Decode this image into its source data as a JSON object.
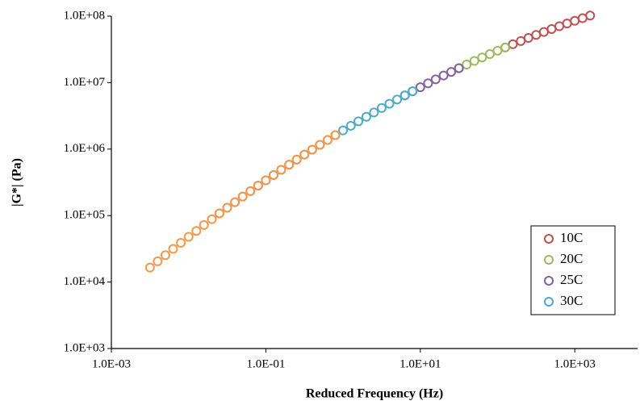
{
  "chart_data": {
    "type": "scatter",
    "xlabel": "Reduced Frequency (Hz)",
    "ylabel": "|G*| (Pa)",
    "xscale": "log",
    "yscale": "log",
    "xlim": [
      0.001,
      6500
    ],
    "ylim": [
      1000,
      100000000
    ],
    "xticks": [
      {
        "value": 0.001,
        "label": "1.0E-03"
      },
      {
        "value": 0.1,
        "label": "1.0E-01"
      },
      {
        "value": 10,
        "label": "1.0E+01"
      },
      {
        "value": 1000,
        "label": "1.0E+03"
      }
    ],
    "yticks": [
      {
        "value": 1000,
        "label": "1.0E+03"
      },
      {
        "value": 10000,
        "label": "1.0E+04"
      },
      {
        "value": 100000,
        "label": "1.0E+05"
      },
      {
        "value": 1000000,
        "label": "1.0E+06"
      },
      {
        "value": 10000000,
        "label": "1.0E+07"
      },
      {
        "value": 100000000,
        "label": "1.0E+08"
      }
    ],
    "legend": "lower right",
    "series": [
      {
        "name": "10C",
        "color": "#c0504d",
        "x": [
          126,
          158,
          200,
          251,
          316,
          398,
          501,
          631,
          794,
          1000,
          1260,
          1580
        ],
        "values": [
          33800000,
          37800000,
          42200000,
          47000000,
          52200000,
          57800000,
          63900000,
          70500000,
          77500000,
          85100000,
          93200000,
          102000000
        ]
      },
      {
        "name": "20C",
        "color": "#9bbb59",
        "x": [
          31.6,
          39.8,
          50.1,
          63.1,
          79.4,
          100,
          126
        ],
        "values": [
          16500000,
          18700000,
          21200000,
          23900000,
          26900000,
          30200000,
          33800000
        ]
      },
      {
        "name": "25C",
        "color": "#8064a2",
        "x": [
          6.31,
          7.94,
          10,
          12.6,
          15.8,
          20,
          25.1,
          31.6
        ],
        "values": [
          6430000,
          7410000,
          8510000,
          9760000,
          11200000,
          12800000,
          14500000,
          16500000
        ]
      },
      {
        "name": "30C",
        "color": "#4bacc6",
        "x": [
          0.0251,
          0.0316,
          0.0398,
          0.0501,
          0.0631,
          0.0794,
          0.1,
          0.126,
          0.158,
          0.2,
          0.251,
          0.316,
          0.398,
          0.501,
          0.631,
          0.794,
          1,
          1.26,
          1.58,
          2,
          2.51,
          3.16,
          3.98,
          5.01,
          6.31,
          7.94
        ],
        "values": [
          108000,
          131000,
          159000,
          193000,
          233000,
          282000,
          339000,
          407000,
          488000,
          583000,
          695000,
          827000,
          982000,
          1160000,
          1370000,
          1620000,
          1910000,
          2240000,
          2620000,
          3060000,
          3560000,
          4150000,
          4810000,
          5570000,
          6430000,
          7410000
        ]
      },
      {
        "color": "#f79646",
        "x": [
          0.00316,
          0.00398,
          0.00501,
          0.00631,
          0.00794,
          0.01,
          0.0126,
          0.0158,
          0.02,
          0.0251,
          0.0316,
          0.0398,
          0.0501,
          0.0631,
          0.0794,
          0.1,
          0.126,
          0.158,
          0.2,
          0.251,
          0.316,
          0.398,
          0.501,
          0.631,
          0.794
        ],
        "values": [
          16500,
          20500,
          25400,
          31500,
          38900,
          47900,
          58800,
          72100,
          88200,
          108000,
          131000,
          159000,
          193000,
          233000,
          282000,
          339000,
          407000,
          488000,
          583000,
          695000,
          827000,
          982000,
          1160000,
          1370000,
          1620000
        ]
      }
    ]
  }
}
